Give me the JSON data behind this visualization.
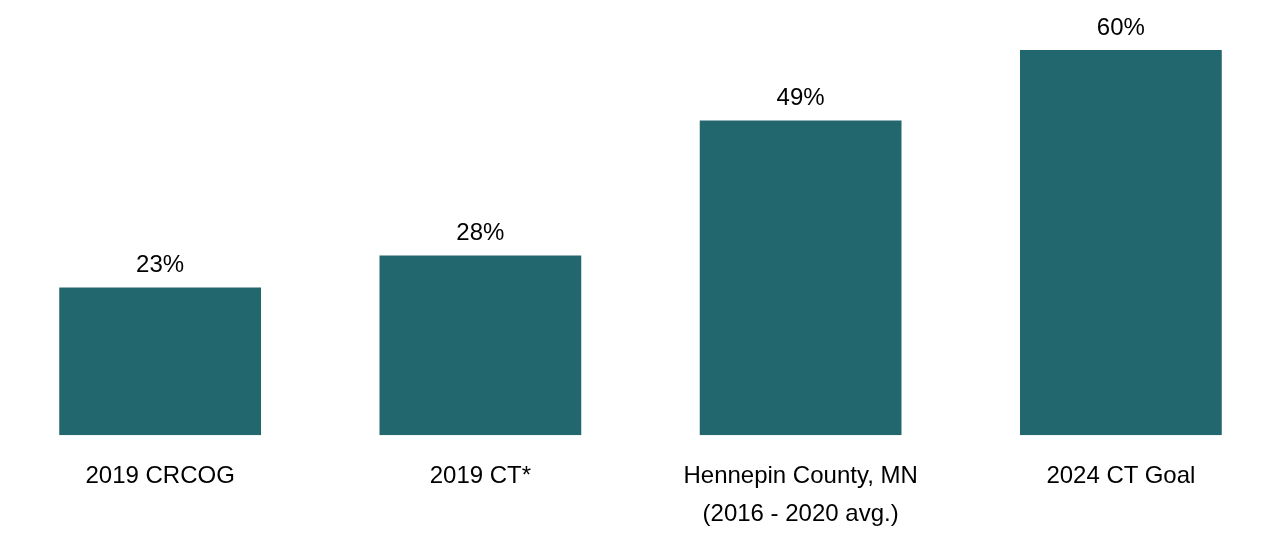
{
  "chart_data": {
    "type": "bar",
    "categories": [
      "2019 CRCOG",
      "2019 CT*",
      "Hennepin County, MN\n(2016 - 2020 avg.)",
      "2024 CT Goal"
    ],
    "values": [
      23,
      28,
      49,
      60
    ],
    "value_labels": [
      "23%",
      "28%",
      "49%",
      "60%"
    ],
    "color": "#22666e",
    "grid": false,
    "legend": false
  }
}
